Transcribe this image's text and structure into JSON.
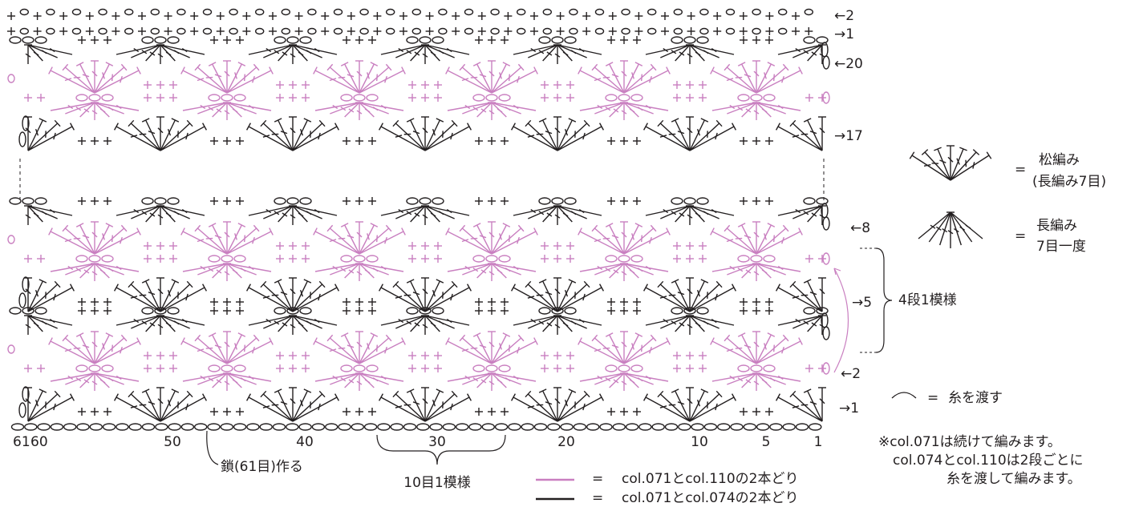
{
  "row_labels": [
    "←2",
    "→1",
    "←20",
    "→17",
    "←8",
    "→5",
    "←2",
    "→1"
  ],
  "stitch_numbers": [
    "61",
    "60",
    "50",
    "40",
    "30",
    "20",
    "10",
    "5",
    "1"
  ],
  "foundation_note": "鎖(61目)作る",
  "repeat_width": "10目1模様",
  "repeat_height": "4段1模様",
  "legend": {
    "shell": {
      "equals": "=",
      "lines": [
        "松編み",
        "(長編み7目)"
      ]
    },
    "cluster": {
      "equals": "=",
      "lines": [
        "長編み",
        "7目一度"
      ]
    },
    "carry_yarn": {
      "equals": "=",
      "label": "糸を渡す"
    }
  },
  "notes": [
    "※col.071は続けて編みます。",
    "col.074とcol.110は2段ごとに",
    "糸を渡して編みます。"
  ],
  "color_legend": [
    {
      "equals": "=",
      "label": "col.071とcol.110の2本どり"
    },
    {
      "equals": "=",
      "label": "col.071とcol.074の2本どり"
    }
  ]
}
